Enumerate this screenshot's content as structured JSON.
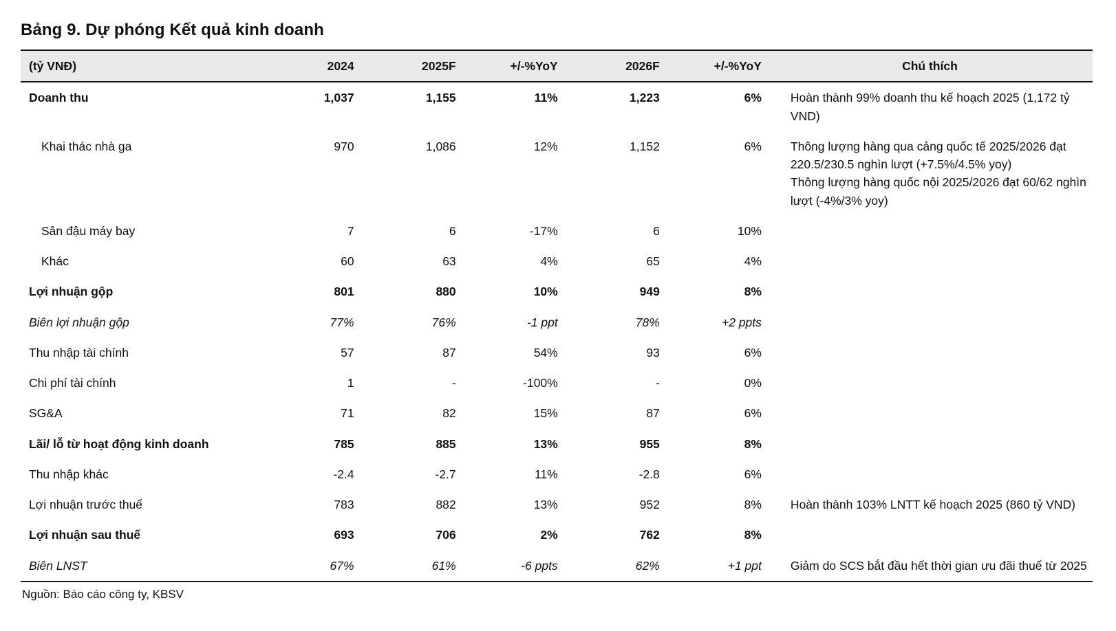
{
  "title": "Bảng 9. Dự phóng Kết quả kinh doanh",
  "source": "Nguồn: Báo cáo công ty, KBSV",
  "table": {
    "headers": [
      "(tỷ VNĐ)",
      "2024",
      "2025F",
      "+/-%YoY",
      "2026F",
      "+/-%YoY",
      "Chú thích"
    ],
    "rows": [
      {
        "label": "Doanh thu",
        "style": "bold",
        "indent": false,
        "values": [
          "1,037",
          "1,155",
          "11%",
          "1,223",
          "6%"
        ],
        "note": "Hoàn thành 99% doanh thu kế hoạch 2025 (1,172 tỷ VND)"
      },
      {
        "label": "Khai thác nhà ga",
        "style": "normal",
        "indent": true,
        "values": [
          "970",
          "1,086",
          "12%",
          "1,152",
          "6%"
        ],
        "note": "Thông lượng hàng qua cảng quốc tế 2025/2026 đạt 220.5/230.5 nghìn lượt (+7.5%/4.5% yoy)\nThông lượng hàng quốc nội 2025/2026 đạt 60/62 nghìn lượt (-4%/3% yoy)"
      },
      {
        "label": "Sân đậu máy bay",
        "style": "normal",
        "indent": true,
        "values": [
          "7",
          "6",
          "-17%",
          "6",
          "10%"
        ],
        "note": ""
      },
      {
        "label": "Khác",
        "style": "normal",
        "indent": true,
        "values": [
          "60",
          "63",
          "4%",
          "65",
          "4%"
        ],
        "note": ""
      },
      {
        "label": "Lợi nhuận gộp",
        "style": "bold",
        "indent": false,
        "values": [
          "801",
          "880",
          "10%",
          "949",
          "8%"
        ],
        "note": ""
      },
      {
        "label": "Biên lợi nhuận gộp",
        "style": "italic",
        "indent": false,
        "values": [
          "77%",
          "76%",
          "-1 ppt",
          "78%",
          "+2 ppts"
        ],
        "note": ""
      },
      {
        "label": "Thu nhập tài chính",
        "style": "normal",
        "indent": false,
        "values": [
          "57",
          "87",
          "54%",
          "93",
          "6%"
        ],
        "note": ""
      },
      {
        "label": "Chi phí tài chính",
        "style": "normal",
        "indent": false,
        "values": [
          "1",
          "-",
          "-100%",
          "-",
          "0%"
        ],
        "note": ""
      },
      {
        "label": "SG&A",
        "style": "normal",
        "indent": false,
        "values": [
          "71",
          "82",
          "15%",
          "87",
          "6%"
        ],
        "note": ""
      },
      {
        "label": "Lãi/ lỗ từ hoạt động kinh doanh",
        "style": "bold",
        "indent": false,
        "values": [
          "785",
          "885",
          "13%",
          "955",
          "8%"
        ],
        "note": ""
      },
      {
        "label": "Thu nhập khác",
        "style": "normal",
        "indent": false,
        "values": [
          "-2.4",
          "-2.7",
          "11%",
          "-2.8",
          "6%"
        ],
        "note": ""
      },
      {
        "label": "Lợi nhuận trước thuế",
        "style": "normal",
        "indent": false,
        "values": [
          "783",
          "882",
          "13%",
          "952",
          "8%"
        ],
        "note": "Hoàn thành 103% LNTT kế hoạch 2025 (860 tỷ VND)"
      },
      {
        "label": "Lợi nhuận sau thuế",
        "style": "bold",
        "indent": false,
        "values": [
          "693",
          "706",
          "2%",
          "762",
          "8%"
        ],
        "note": ""
      },
      {
        "label": "Biên LNST",
        "style": "italic",
        "indent": false,
        "values": [
          "67%",
          "61%",
          "-6 ppts",
          "62%",
          "+1 ppt"
        ],
        "note": "Giảm do SCS bắt đầu hết thời gian ưu đãi thuế từ 2025"
      }
    ]
  }
}
